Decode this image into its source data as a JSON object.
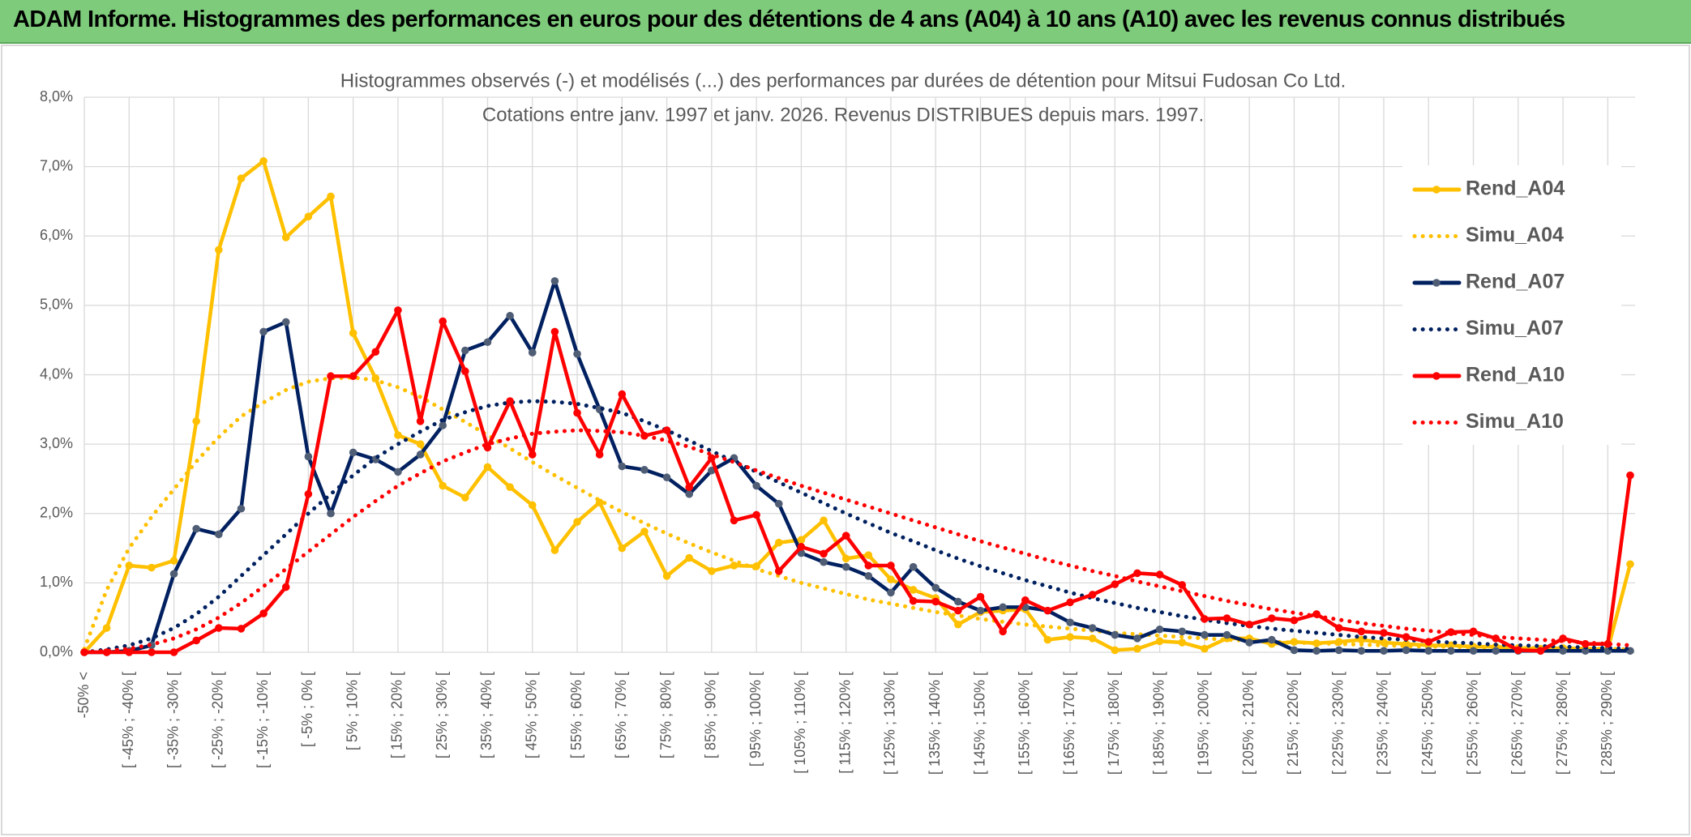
{
  "header": {
    "title": "ADAM Informe. Histogrammes des performances en euros pour des détentions de 4 ans (A04) à 10 ans (A10) avec les revenus connus distribués"
  },
  "chart_data": {
    "type": "line",
    "title": "Histogrammes observés (-) et modélisés (...) des performances par durées de détention pour Mitsui Fudosan Co Ltd.",
    "subtitle": "Cotations entre janv. 1997 et janv. 2026. Revenus DISTRIBUES depuis mars. 1997.",
    "categories": [
      "-50% <",
      null,
      "[ -45% ; -40% [",
      null,
      "[ -35% ; -30% [",
      null,
      "[ -25% ; -20% [",
      null,
      "[ -15% ; -10% [",
      null,
      "[ -5% ; 0% [",
      null,
      "[ 5% ; 10% [",
      null,
      "[ 15% ; 20% [",
      null,
      "[ 25% ; 30% [",
      null,
      "[ 35% ; 40% [",
      null,
      "[ 45% ; 50% [",
      null,
      "[ 55% ; 60% [",
      null,
      "[ 65% ; 70% [",
      null,
      "[ 75% ; 80% [",
      null,
      "[ 85% ; 90% [",
      null,
      "[ 95% ; 100% [",
      null,
      "[ 105% ; 110% [",
      null,
      "[ 115% ; 120% [",
      null,
      "[ 125% ; 130% [",
      null,
      "[ 135% ; 140% [",
      null,
      "[ 145% ; 150% [",
      null,
      "[ 155% ; 160% [",
      null,
      "[ 165% ; 170% [",
      null,
      "[ 175% ; 180% [",
      null,
      "[ 185% ; 190% [",
      null,
      "[ 195% ; 200% [",
      null,
      "[ 205% ; 210% [",
      null,
      "[ 215% ; 220% [",
      null,
      "[ 225% ; 230% [",
      null,
      "[ 235% ; 240% [",
      null,
      "[ 245% ; 250% [",
      null,
      "[ 255% ; 260% [",
      null,
      "[ 265% ; 270% [",
      null,
      "[ 275% ; 280% [",
      null,
      "[ 285% ; 290% [",
      null
    ],
    "series": [
      {
        "name": "Rend_A04",
        "color": "#ffc000",
        "dash": "solid",
        "markers": true,
        "marker_color": "#ffc000",
        "values": [
          0,
          0.35,
          1.25,
          1.22,
          1.32,
          3.33,
          5.8,
          6.83,
          7.08,
          5.98,
          6.28,
          6.57,
          4.6,
          3.95,
          3.13,
          3.0,
          2.4,
          2.23,
          2.67,
          2.38,
          2.12,
          1.47,
          1.88,
          2.16,
          1.5,
          1.74,
          1.1,
          1.36,
          1.17,
          1.25,
          1.24,
          1.58,
          1.62,
          1.9,
          1.35,
          1.4,
          1.05,
          0.9,
          0.78,
          0.4,
          0.58,
          0.6,
          0.62,
          0.18,
          0.22,
          0.2,
          0.03,
          0.05,
          0.16,
          0.14,
          0.05,
          0.2,
          0.2,
          0.12,
          0.15,
          0.13,
          0.15,
          0.18,
          0.14,
          0.12,
          0.1,
          0.1,
          0.08,
          0.08,
          0.06,
          0.05,
          0.06,
          0.05,
          0.04,
          1.27
        ]
      },
      {
        "name": "Simu_A04",
        "color": "#ffc000",
        "dash": "dotted",
        "markers": false,
        "values": [
          0.05,
          0.9,
          1.5,
          1.95,
          2.35,
          2.75,
          3.1,
          3.4,
          3.6,
          3.78,
          3.9,
          3.95,
          3.96,
          3.92,
          3.82,
          3.68,
          3.5,
          3.32,
          3.13,
          2.94,
          2.74,
          2.55,
          2.37,
          2.19,
          2.02,
          1.86,
          1.71,
          1.57,
          1.44,
          1.32,
          1.2,
          1.1,
          1.0,
          0.92,
          0.84,
          0.76,
          0.7,
          0.64,
          0.58,
          0.53,
          0.48,
          0.44,
          0.4,
          0.37,
          0.34,
          0.31,
          0.28,
          0.26,
          0.24,
          0.22,
          0.2,
          0.18,
          0.17,
          0.15,
          0.14,
          0.13,
          0.12,
          0.11,
          0.1,
          0.09,
          0.08,
          0.08,
          0.07,
          0.07,
          0.06,
          0.06,
          0.05,
          0.05,
          0.05,
          0.04
        ]
      },
      {
        "name": "Rend_A07",
        "color": "#002060",
        "dash": "solid",
        "markers": true,
        "marker_color": "#4f5d75",
        "values": [
          0,
          0,
          0.02,
          0.1,
          1.13,
          1.78,
          1.7,
          2.07,
          4.62,
          4.76,
          2.82,
          2.0,
          2.88,
          2.78,
          2.6,
          2.85,
          3.27,
          4.35,
          4.47,
          4.85,
          4.32,
          5.35,
          4.3,
          3.5,
          2.68,
          2.63,
          2.52,
          2.28,
          2.62,
          2.8,
          2.4,
          2.14,
          1.43,
          1.3,
          1.23,
          1.1,
          0.86,
          1.23,
          0.93,
          0.73,
          0.6,
          0.65,
          0.65,
          0.6,
          0.43,
          0.35,
          0.25,
          0.2,
          0.33,
          0.3,
          0.25,
          0.25,
          0.14,
          0.18,
          0.03,
          0.02,
          0.03,
          0.02,
          0.02,
          0.03,
          0.02,
          0.02,
          0.02,
          0.02,
          0.02,
          0.02,
          0.02,
          0.02,
          0.02,
          0.02
        ]
      },
      {
        "name": "Simu_A07",
        "color": "#002060",
        "dash": "dotted",
        "markers": false,
        "values": [
          0,
          0.04,
          0.1,
          0.2,
          0.35,
          0.55,
          0.8,
          1.1,
          1.4,
          1.7,
          2.0,
          2.28,
          2.55,
          2.8,
          3.0,
          3.18,
          3.35,
          3.46,
          3.55,
          3.6,
          3.62,
          3.61,
          3.58,
          3.52,
          3.45,
          3.33,
          3.2,
          3.05,
          2.9,
          2.75,
          2.6,
          2.45,
          2.3,
          2.15,
          2.0,
          1.86,
          1.72,
          1.6,
          1.47,
          1.35,
          1.24,
          1.14,
          1.04,
          0.95,
          0.86,
          0.78,
          0.71,
          0.64,
          0.58,
          0.52,
          0.47,
          0.42,
          0.38,
          0.34,
          0.31,
          0.28,
          0.25,
          0.22,
          0.2,
          0.18,
          0.16,
          0.14,
          0.13,
          0.11,
          0.1,
          0.09,
          0.08,
          0.07,
          0.06,
          0.05
        ]
      },
      {
        "name": "Rend_A10",
        "color": "#ff0000",
        "dash": "solid",
        "markers": true,
        "marker_color": "#ff0000",
        "values": [
          0,
          0,
          0,
          0,
          0,
          0.17,
          0.35,
          0.34,
          0.56,
          0.94,
          2.28,
          3.98,
          3.98,
          4.33,
          4.93,
          3.33,
          4.77,
          4.05,
          2.95,
          3.62,
          2.85,
          4.62,
          3.45,
          2.85,
          3.72,
          3.12,
          3.2,
          2.38,
          2.8,
          1.9,
          1.98,
          1.17,
          1.52,
          1.42,
          1.68,
          1.25,
          1.25,
          0.74,
          0.73,
          0.6,
          0.8,
          0.3,
          0.75,
          0.6,
          0.72,
          0.83,
          0.98,
          1.14,
          1.12,
          0.97,
          0.48,
          0.49,
          0.4,
          0.49,
          0.46,
          0.55,
          0.35,
          0.3,
          0.28,
          0.22,
          0.15,
          0.29,
          0.3,
          0.2,
          0.03,
          0.02,
          0.2,
          0.12,
          0.12,
          2.55
        ]
      },
      {
        "name": "Simu_A10",
        "color": "#ff0000",
        "dash": "dotted",
        "markers": false,
        "values": [
          0,
          0.02,
          0.05,
          0.11,
          0.2,
          0.33,
          0.5,
          0.71,
          0.95,
          1.2,
          1.45,
          1.7,
          1.95,
          2.18,
          2.4,
          2.58,
          2.75,
          2.88,
          3.0,
          3.08,
          3.15,
          3.18,
          3.2,
          3.19,
          3.17,
          3.12,
          3.05,
          2.96,
          2.85,
          2.74,
          2.62,
          2.51,
          2.4,
          2.3,
          2.2,
          2.1,
          2.0,
          1.9,
          1.8,
          1.7,
          1.6,
          1.51,
          1.42,
          1.33,
          1.25,
          1.17,
          1.1,
          1.02,
          0.95,
          0.88,
          0.81,
          0.74,
          0.68,
          0.62,
          0.57,
          0.52,
          0.47,
          0.42,
          0.38,
          0.34,
          0.31,
          0.28,
          0.25,
          0.22,
          0.2,
          0.18,
          0.16,
          0.14,
          0.12,
          0.1
        ]
      }
    ],
    "ylim": [
      0,
      8
    ],
    "yticks": [
      {
        "value": 0,
        "label": "0,0%"
      },
      {
        "value": 1,
        "label": "1,0%"
      },
      {
        "value": 2,
        "label": "2,0%"
      },
      {
        "value": 3,
        "label": "3,0%"
      },
      {
        "value": 4,
        "label": "4,0%"
      },
      {
        "value": 5,
        "label": "5,0%"
      },
      {
        "value": 6,
        "label": "6,0%"
      },
      {
        "value": 7,
        "label": "7,0%"
      },
      {
        "value": 8,
        "label": "8,0%"
      }
    ],
    "grid": true,
    "legend": "right"
  }
}
